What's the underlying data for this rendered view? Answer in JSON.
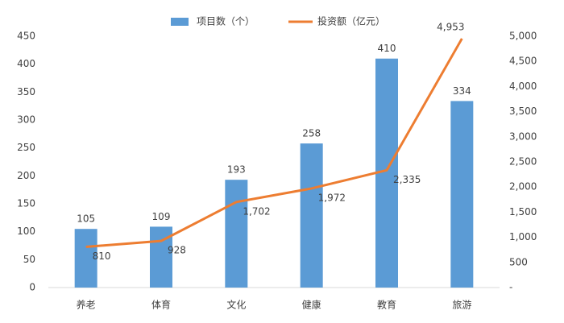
{
  "chart_data": {
    "type": "bar",
    "categories": [
      "养老",
      "体育",
      "文化",
      "健康",
      "教育",
      "旅游"
    ],
    "series": [
      {
        "name": "项目数（个）",
        "type": "bar",
        "color": "#5b9bd5",
        "values": [
          105,
          109,
          193,
          258,
          410,
          334
        ]
      },
      {
        "name": "投资额（亿元）",
        "type": "line",
        "axis": "y2",
        "color": "#ed7d31",
        "values": [
          810,
          928,
          1702,
          1972,
          2335,
          4953
        ],
        "value_labels": [
          "810",
          "928",
          "1,702",
          "1,972",
          "2,335",
          "4,953"
        ]
      }
    ],
    "ylim": [
      0,
      450
    ],
    "yticks": [
      0,
      50,
      100,
      150,
      200,
      250,
      300,
      350,
      400,
      450
    ],
    "y2lim": [
      0,
      5000
    ],
    "y2ticks": [
      {
        "value": 0,
        "label": "-"
      },
      500,
      {
        "value": 1000,
        "label": "1,000"
      },
      {
        "value": 1500,
        "label": "1,500"
      },
      {
        "value": 2000,
        "label": "2,000"
      },
      {
        "value": 2500,
        "label": "2,500"
      },
      {
        "value": 3000,
        "label": "3,000"
      },
      {
        "value": 3500,
        "label": "3,500"
      },
      {
        "value": 4000,
        "label": "4,000"
      },
      {
        "value": 4500,
        "label": "4,500"
      },
      {
        "value": 5000,
        "label": "5,000"
      }
    ],
    "legend": "top",
    "grid": false
  }
}
